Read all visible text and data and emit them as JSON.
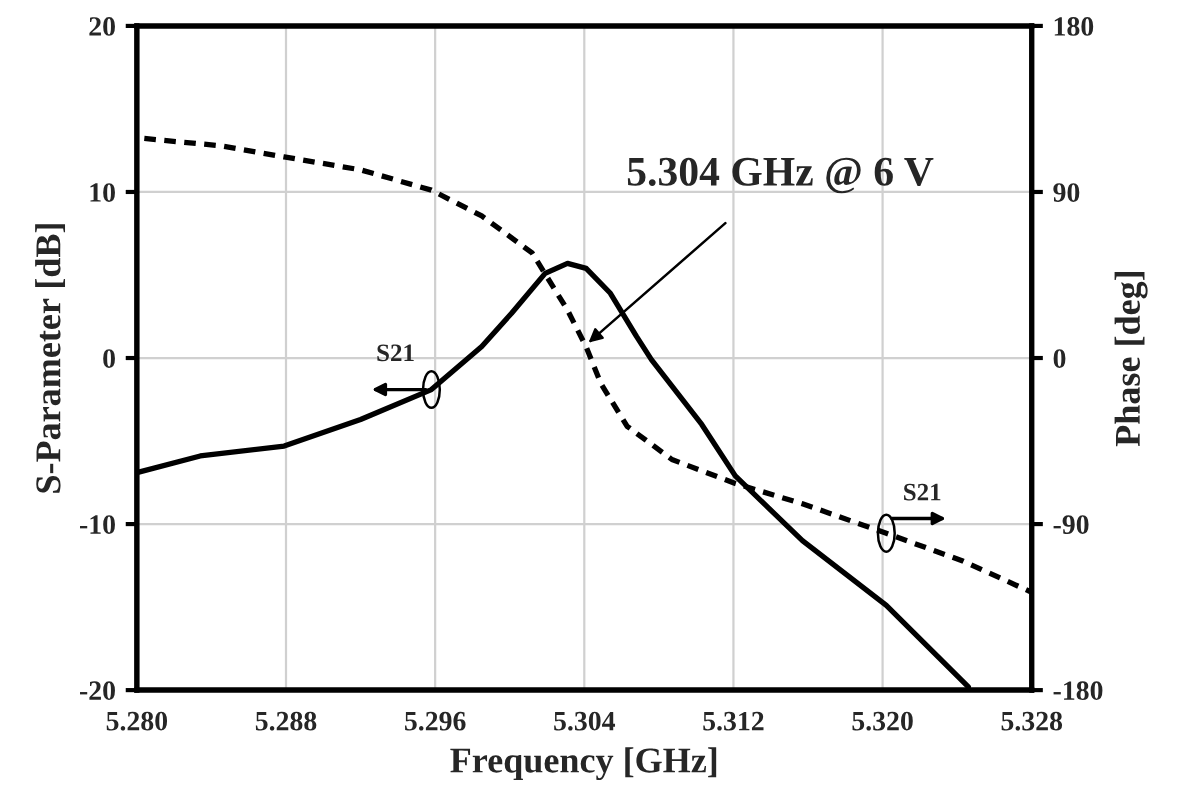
{
  "chart_data": {
    "type": "line",
    "xlabel": "Frequency [GHz]",
    "ylabel": "S-Parameter [dB]",
    "y2label": "Phase [deg]",
    "xlim": [
      5.28,
      5.328
    ],
    "xticks": [
      {
        "value": 5.28,
        "label": "5.280"
      },
      5.288,
      5.296,
      5.304,
      5.312,
      {
        "value": 5.32,
        "label": "5.320"
      },
      5.328
    ],
    "ylim": [
      -20,
      20
    ],
    "yticks": [
      -20,
      -10,
      0,
      10,
      20
    ],
    "y2lim": [
      -180,
      180
    ],
    "y2ticks": [
      -180,
      -90,
      0,
      90,
      180
    ],
    "grid": true,
    "series": [
      {
        "name": "S21",
        "color": "#000000",
        "line_style": "solid",
        "x": [
          5.28,
          5.2834,
          5.2879,
          5.292,
          5.2958,
          5.2985,
          5.3001,
          5.3019,
          5.3031,
          5.3041,
          5.3054,
          5.3068,
          5.3076,
          5.3103,
          5.3121,
          5.3157,
          5.3202,
          5.3246
        ],
        "values": [
          -6.9,
          -5.9,
          -5.3,
          -3.7,
          -1.9,
          0.7,
          2.7,
          5.1,
          5.7,
          5.4,
          3.9,
          1.3,
          -0.1,
          -4.0,
          -7.1,
          -11.0,
          -14.9,
          -19.8
        ]
      },
      {
        "name": "S21",
        "color": "#000000",
        "line_style": "dashed",
        "axis": "y2",
        "x": [
          5.2804,
          5.2845,
          5.2879,
          5.292,
          5.2958,
          5.2985,
          5.3012,
          5.3031,
          5.3041,
          5.3049,
          5.3063,
          5.3087,
          5.3121,
          5.3157,
          5.3202,
          5.3243,
          5.328
        ],
        "values": [
          119,
          115,
          109,
          102,
          91,
          77,
          57,
          26,
          6,
          -14,
          -37,
          -55,
          -68,
          -79,
          -95,
          -110,
          -127
        ]
      }
    ],
    "annotations": [
      {
        "text": "5.304 GHz @ 6 V",
        "x": 5.304,
        "y": 0.7
      }
    ]
  }
}
